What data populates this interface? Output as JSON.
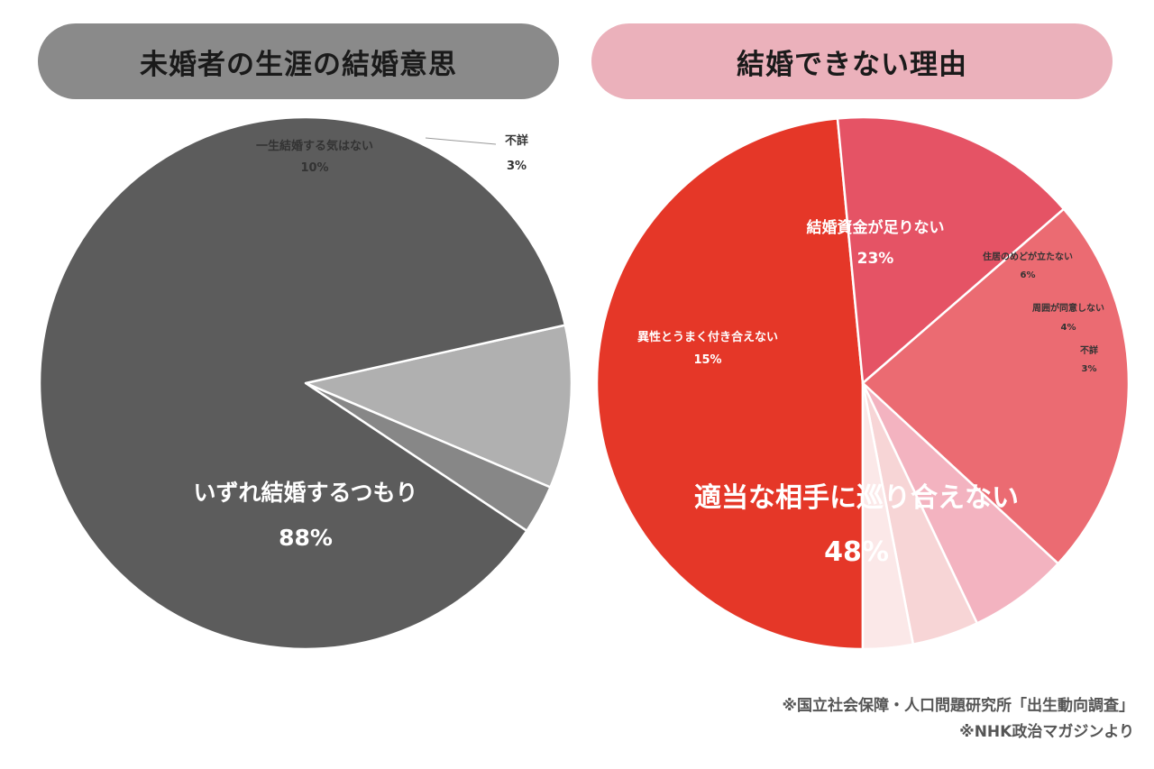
{
  "chart_data": [
    {
      "type": "pie",
      "title": "未婚者の生涯の結婚意思",
      "header_color": "#8a8a8a",
      "start_angle_deg": -12.6,
      "slices": [
        {
          "label": "一生結婚する気はない",
          "value": 10,
          "pct_label": "10%",
          "color": "#b0b0b0"
        },
        {
          "label": "不詳",
          "value": 3,
          "pct_label": "3%",
          "color": "#878787"
        },
        {
          "label": "いずれ結婚するつもり",
          "value": 88,
          "pct_label": "88%",
          "color": "#5c5c5c"
        }
      ]
    },
    {
      "type": "pie",
      "title": "結婚できない理由",
      "header_color": "#ebb1bb",
      "start_angle_deg": 90,
      "slices": [
        {
          "label": "適当な相手に巡り合えない",
          "value": 48,
          "pct_label": "48%",
          "color": "#e53728"
        },
        {
          "label": "異性とうまく付き合えない",
          "value": 15,
          "pct_label": "15%",
          "color": "#e55365"
        },
        {
          "label": "結婚資金が足りない",
          "value": 23,
          "pct_label": "23%",
          "color": "#eb6b72"
        },
        {
          "label": "住居のめどが立たない",
          "value": 6,
          "pct_label": "6%",
          "color": "#f3b3c0"
        },
        {
          "label": "周囲が同意しない",
          "value": 4,
          "pct_label": "4%",
          "color": "#f7d5d6"
        },
        {
          "label": "不詳",
          "value": 3,
          "pct_label": "3%",
          "color": "#fbe8e8"
        }
      ]
    }
  ],
  "footnotes": [
    "※国立社会保障・人口問題研究所「出生動向調査」",
    "※NHK政治マガジンより"
  ]
}
